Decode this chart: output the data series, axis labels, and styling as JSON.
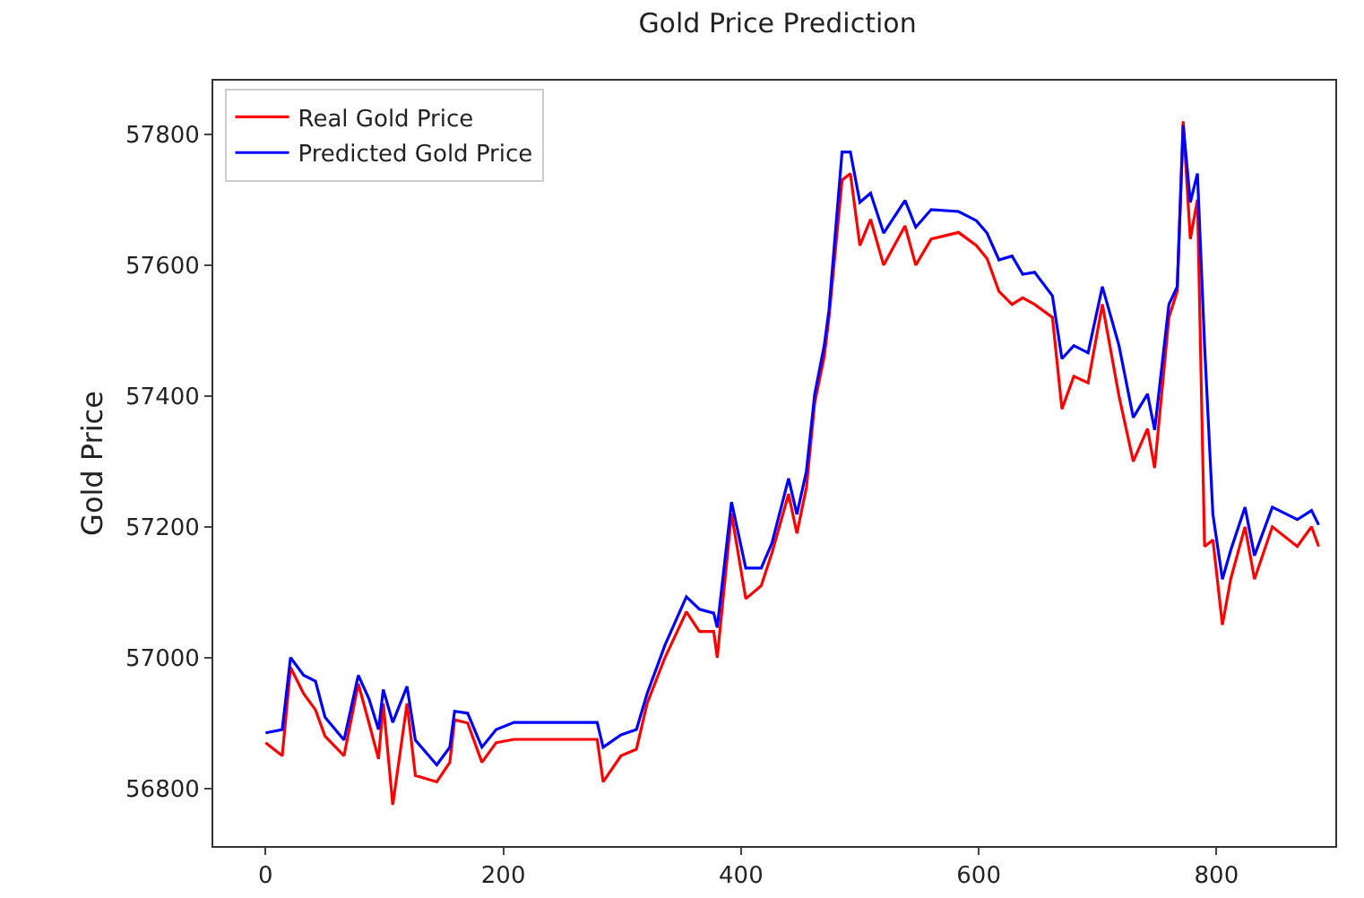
{
  "chart_data": {
    "type": "line",
    "title": "Gold Price Prediction",
    "ylabel": "Gold Price",
    "x": [
      0,
      14,
      21,
      32,
      42,
      50,
      66,
      78,
      87,
      95,
      99,
      107,
      119,
      126,
      144,
      155,
      159,
      170,
      182,
      194,
      209,
      279,
      284,
      299,
      312,
      321,
      336,
      354,
      365,
      377,
      380,
      392,
      404,
      417,
      426,
      440,
      447,
      455,
      462,
      470,
      474,
      485,
      492,
      500,
      509,
      520,
      538,
      547,
      560,
      583,
      598,
      607,
      617,
      628,
      637,
      647,
      662,
      670,
      680,
      692,
      704,
      718,
      730,
      742,
      748,
      760,
      767,
      772,
      778,
      784,
      790,
      797,
      805,
      812,
      824,
      832,
      847,
      868,
      880,
      886
    ],
    "series": [
      {
        "name": "Real Gold Price",
        "color": "#ff0000",
        "values": [
          56870,
          56850,
          56985,
          56945,
          56920,
          56880,
          56850,
          56960,
          56900,
          56845,
          56930,
          56775,
          56930,
          56820,
          56810,
          56840,
          56905,
          56900,
          56840,
          56870,
          56875,
          56875,
          56810,
          56850,
          56860,
          56930,
          57000,
          57070,
          57040,
          57040,
          57000,
          57220,
          57090,
          57110,
          57160,
          57250,
          57190,
          57260,
          57390,
          57460,
          57520,
          57730,
          57740,
          57630,
          57670,
          57600,
          57660,
          57600,
          57640,
          57650,
          57630,
          57610,
          57560,
          57540,
          57550,
          57540,
          57520,
          57380,
          57430,
          57420,
          57540,
          57400,
          57300,
          57350,
          57290,
          57520,
          57560,
          57820,
          57640,
          57700,
          57170,
          57180,
          57050,
          57120,
          57200,
          57120,
          57200,
          57170,
          57200,
          57170
        ]
      },
      {
        "name": "Predicted Gold Price",
        "color": "#0000ff",
        "values": [
          56885,
          56890,
          57000,
          56973,
          56964,
          56909,
          56874,
          56973,
          56937,
          56890,
          56951,
          56901,
          56956,
          56874,
          56836,
          56863,
          56918,
          56915,
          56863,
          56890,
          56901,
          56901,
          56863,
          56882,
          56890,
          56945,
          57019,
          57093,
          57074,
          57068,
          57046,
          57238,
          57137,
          57137,
          57175,
          57274,
          57219,
          57285,
          57403,
          57477,
          57531,
          57773,
          57773,
          57696,
          57710,
          57649,
          57699,
          57658,
          57685,
          57682,
          57668,
          57649,
          57608,
          57614,
          57586,
          57589,
          57553,
          57457,
          57477,
          57466,
          57567,
          57477,
          57367,
          57403,
          57348,
          57540,
          57567,
          57814,
          57696,
          57740,
          57477,
          57219,
          57120,
          57164,
          57230,
          57156,
          57230,
          57211,
          57225,
          57203
        ]
      }
    ],
    "xlim": [
      -44,
      900
    ],
    "xticks": [
      0,
      200,
      400,
      600,
      800
    ],
    "ylim": [
      56712,
      57882
    ],
    "yticks": [
      56800,
      57000,
      57200,
      57400,
      57600,
      57800
    ],
    "grid": false,
    "legend": "top left",
    "line_style": "solid",
    "marker": "none"
  }
}
